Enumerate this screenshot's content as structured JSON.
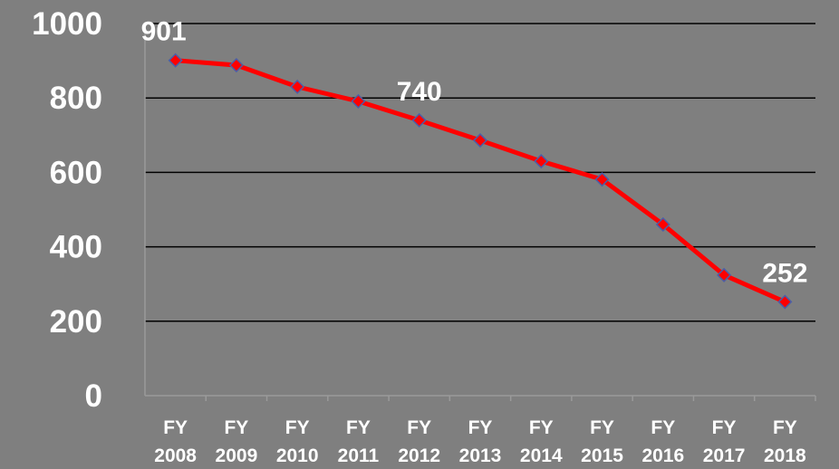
{
  "chart_data": {
    "type": "line",
    "categories": [
      "FY 2008",
      "FY 2009",
      "FY 2010",
      "FY 2011",
      "FY 2012",
      "FY 2013",
      "FY 2014",
      "FY 2015",
      "FY 2016",
      "FY 2017",
      "FY 2018"
    ],
    "series": [
      {
        "name": null,
        "color": "#ff0000",
        "values": [
          901,
          888,
          830,
          791,
          740,
          686,
          630,
          581,
          460,
          324,
          252
        ],
        "value_labels": [
          "901",
          null,
          null,
          null,
          "740",
          null,
          null,
          null,
          null,
          null,
          "252"
        ]
      }
    ],
    "ylim": [
      0,
      1000
    ],
    "yticks": [
      0,
      200,
      400,
      600,
      800,
      1000
    ],
    "grid": true
  }
}
